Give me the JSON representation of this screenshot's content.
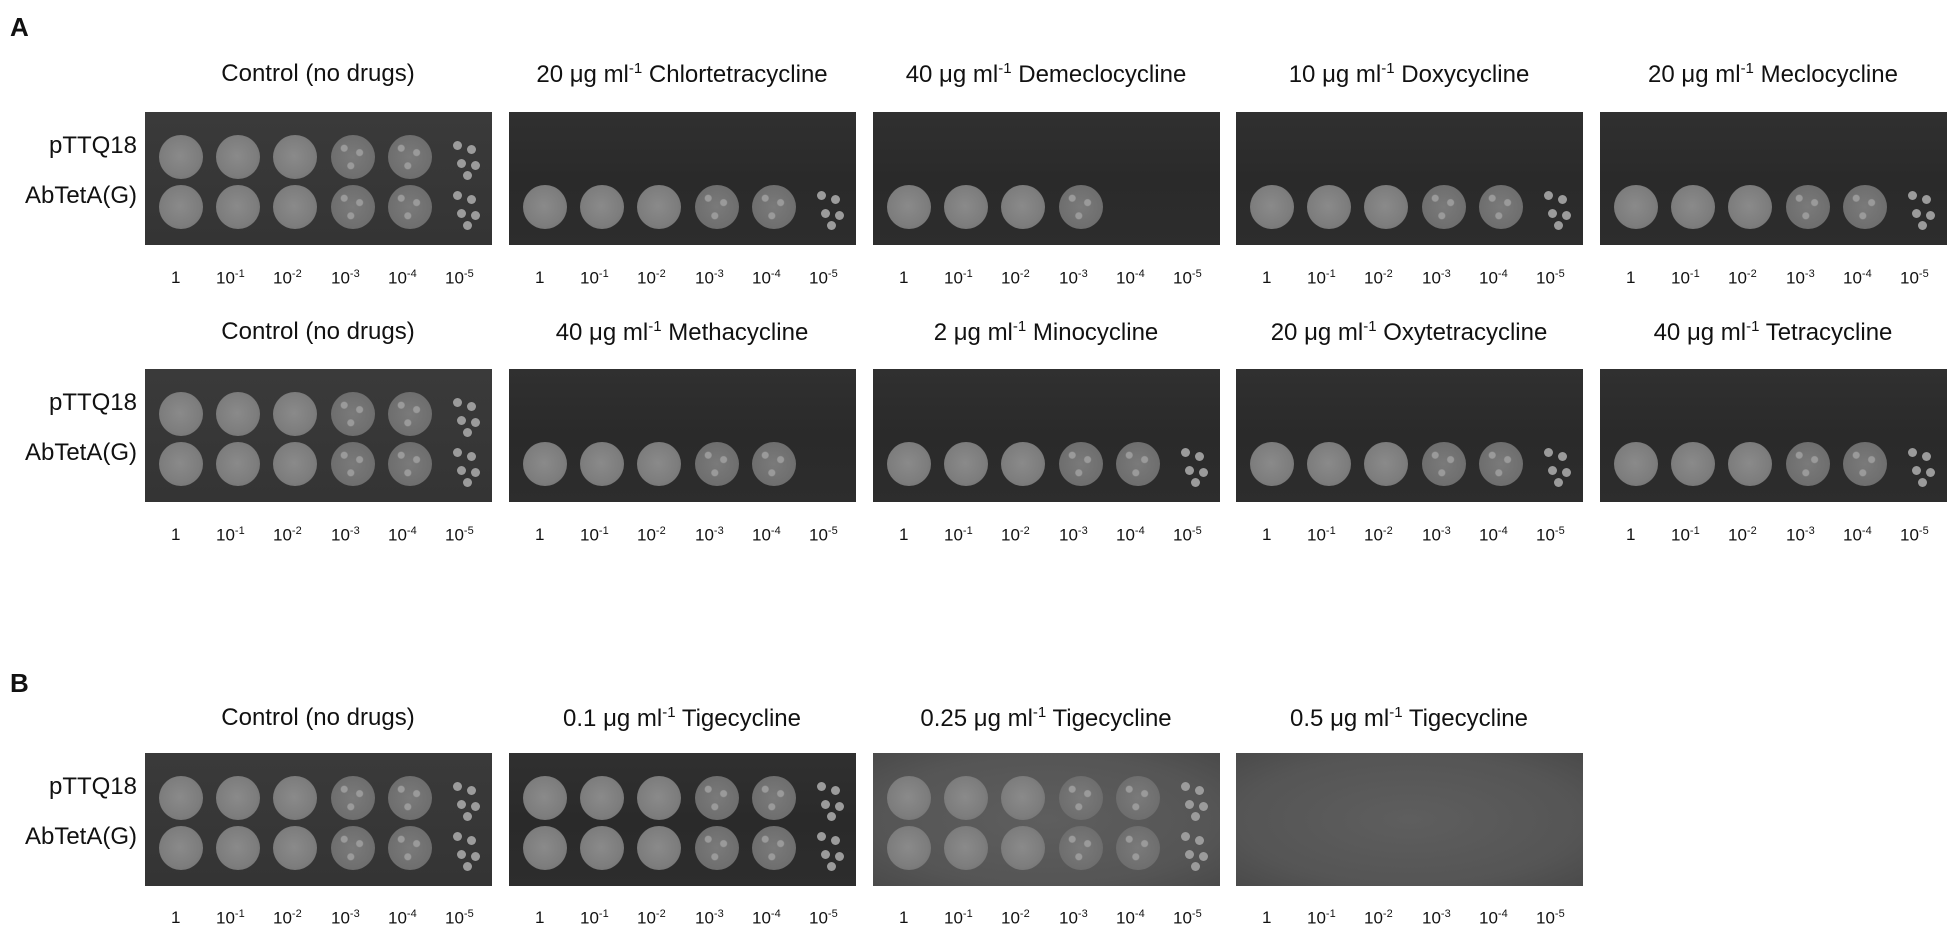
{
  "panels": [
    {
      "letter": "A"
    },
    {
      "letter": "B"
    }
  ],
  "strains": [
    "pTTQ18",
    "AbTetA(G)"
  ],
  "dilutions": [
    {
      "base": "1",
      "exp": ""
    },
    {
      "base": "10",
      "exp": "-1"
    },
    {
      "base": "10",
      "exp": "-2"
    },
    {
      "base": "10",
      "exp": "-3"
    },
    {
      "base": "10",
      "exp": "-4"
    },
    {
      "base": "10",
      "exp": "-5"
    }
  ],
  "plates": [
    {
      "pre": "Control (no drugs)",
      "sup": "",
      "post": ""
    },
    {
      "pre": "20 μg ml",
      "sup": "-1",
      "post": " Chlortetracycline"
    },
    {
      "pre": "40 μg ml",
      "sup": "-1",
      "post": " Demeclocycline"
    },
    {
      "pre": "10 μg ml",
      "sup": "-1",
      "post": " Doxycycline"
    },
    {
      "pre": "20 μg ml",
      "sup": "-1",
      "post": " Meclocycline"
    },
    {
      "pre": "Control (no drugs)",
      "sup": "",
      "post": ""
    },
    {
      "pre": "40 μg ml",
      "sup": "-1",
      "post": " Methacycline"
    },
    {
      "pre": "2 μg ml",
      "sup": "-1",
      "post": " Minocycline"
    },
    {
      "pre": "20 μg ml",
      "sup": "-1",
      "post": " Oxytetracycline"
    },
    {
      "pre": "40 μg ml",
      "sup": "-1",
      "post": " Tetracycline"
    },
    {
      "pre": "Control (no drugs)",
      "sup": "",
      "post": ""
    },
    {
      "pre": "0.1 μg ml",
      "sup": "-1",
      "post": " Tigecycline"
    },
    {
      "pre": "0.25 μg ml",
      "sup": "-1",
      "post": " Tigecycline"
    },
    {
      "pre": "0.5 μg ml",
      "sup": "-1",
      "post": " Tigecycline"
    }
  ]
}
